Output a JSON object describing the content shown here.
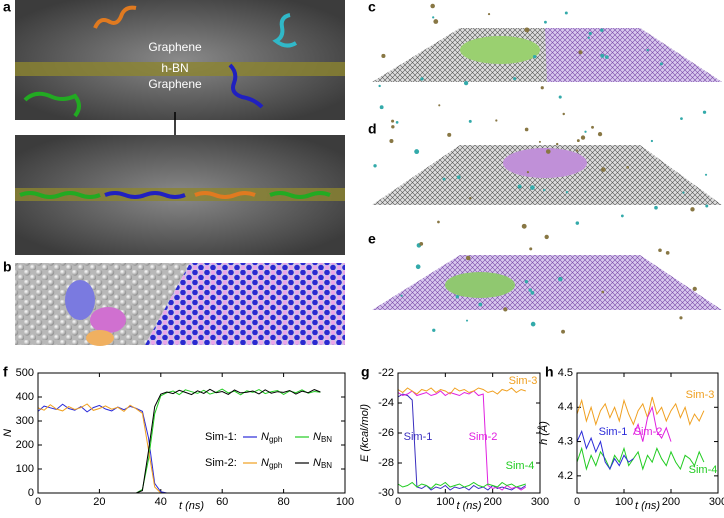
{
  "panels": {
    "a": "a",
    "b": "b",
    "c": "c",
    "d": "d",
    "e": "e"
  },
  "panel_a_texts": {
    "top": "Graphene",
    "middle": "h-BN",
    "bottom": "Graphene"
  },
  "chart_data": [
    {
      "type": "line",
      "panel_label": "f",
      "xlabel": "t (ns)",
      "ylabel": "N",
      "x": [
        0,
        2,
        4,
        6,
        8,
        10,
        12,
        14,
        16,
        18,
        20,
        22,
        24,
        26,
        28,
        30,
        32,
        34,
        36,
        38,
        40,
        42,
        44,
        46,
        48,
        50,
        52,
        54,
        56,
        58,
        60,
        62,
        64,
        66,
        68,
        70,
        72,
        74,
        76,
        78,
        80,
        82,
        84,
        86,
        88,
        90,
        92
      ],
      "xlim": [
        0,
        100
      ],
      "xticks": [
        0,
        20,
        40,
        60,
        80,
        100
      ],
      "ylim": [
        0,
        500
      ],
      "yticks": [
        0,
        100,
        200,
        300,
        400,
        500
      ],
      "legend_rows": [
        "Sim-1:",
        "Sim-2:"
      ],
      "series": [
        {
          "name": "Ngph",
          "color": "#2b2bd9",
          "values": [
            340,
            362,
            355,
            348,
            370,
            352,
            345,
            360,
            338,
            356,
            365,
            350,
            342,
            358,
            347,
            361,
            353,
            340,
            230,
            40,
            5,
            0,
            0,
            0,
            0,
            0,
            0,
            0,
            0,
            0,
            0,
            0,
            0,
            0,
            0,
            0,
            0,
            0,
            0,
            0,
            0,
            0,
            0,
            0,
            0,
            0,
            0
          ]
        },
        {
          "name": "NBN",
          "color": "#22cc22",
          "values": [
            0,
            0,
            0,
            0,
            0,
            0,
            0,
            0,
            0,
            0,
            0,
            0,
            0,
            0,
            0,
            0,
            0,
            15,
            140,
            330,
            405,
            418,
            425,
            410,
            430,
            422,
            415,
            428,
            412,
            420,
            433,
            417,
            424,
            409,
            426,
            419,
            431,
            414,
            422,
            427,
            411,
            425,
            418,
            430,
            416,
            423,
            420
          ]
        },
        {
          "name": "Ngph",
          "color": "#f0a020",
          "values": [
            355,
            345,
            368,
            350,
            342,
            360,
            348,
            356,
            371,
            344,
            352,
            363,
            349,
            357,
            340,
            366,
            351,
            332,
            180,
            25,
            0,
            0,
            0,
            0,
            0,
            0,
            0,
            0,
            0,
            0,
            0,
            0,
            0,
            0,
            0,
            0,
            0,
            0,
            0,
            0,
            0,
            0,
            0,
            0,
            0,
            0,
            0
          ]
        },
        {
          "name": "NBN",
          "color": "#000000",
          "values": [
            0,
            0,
            0,
            0,
            0,
            0,
            0,
            0,
            0,
            0,
            0,
            0,
            0,
            0,
            0,
            0,
            0,
            10,
            175,
            360,
            412,
            421,
            414,
            428,
            419,
            410,
            426,
            415,
            432,
            418,
            423,
            411,
            429,
            417,
            420,
            425,
            413,
            430,
            416,
            422,
            419,
            427,
            412,
            424,
            418,
            431,
            421
          ]
        }
      ]
    },
    {
      "type": "line",
      "panel_label": "g",
      "xlabel": "t (ns)",
      "ylabel": "E (kcal/mol)",
      "x": [
        0,
        10,
        20,
        30,
        40,
        50,
        60,
        70,
        80,
        90,
        100,
        110,
        120,
        130,
        140,
        150,
        160,
        170,
        180,
        190,
        200,
        210,
        220,
        230,
        240,
        250,
        260,
        270
      ],
      "xlim": [
        0,
        300
      ],
      "xticks": [
        0,
        100,
        200,
        300
      ],
      "ylim": [
        -30,
        -22
      ],
      "yticks": [
        -30,
        -28,
        -26,
        -24,
        -22
      ],
      "series": [
        {
          "name": "Sim-1",
          "color": "#3a2fbf",
          "values": [
            -23.6,
            -23.4,
            -23.5,
            -23.8,
            -29.6,
            -29.7,
            -29.5,
            -29.8,
            -29.6,
            -29.7,
            -29.5,
            -29.8,
            -29.6,
            -29.7,
            -29.6,
            -29.8,
            -29.5,
            -29.7,
            -29.6,
            -29.8,
            -29.5,
            -29.7,
            -29.6,
            -29.7,
            -29.8,
            -29.6,
            -29.7,
            -29.5
          ]
        },
        {
          "name": "Sim-2",
          "color": "#e020e0",
          "values": [
            -23.3,
            -23.5,
            -23.4,
            -23.2,
            -23.5,
            -23.4,
            -23.3,
            -23.5,
            -23.4,
            -23.2,
            -23.5,
            -23.3,
            -23.4,
            -23.5,
            -23.3,
            -23.4,
            -23.2,
            -23.5,
            -23.4,
            -29.5,
            -29.7,
            -29.6,
            -29.8,
            -29.5,
            -29.7,
            -29.6,
            -29.8,
            -29.6
          ]
        },
        {
          "name": "Sim-3",
          "color": "#f0a020",
          "values": [
            -23.1,
            -23.3,
            -23.0,
            -23.2,
            -23.4,
            -23.1,
            -23.2,
            -23.0,
            -23.3,
            -23.1,
            -23.2,
            -23.4,
            -23.0,
            -23.2,
            -23.1,
            -23.3,
            -23.2,
            -23.0,
            -23.1,
            -23.3,
            -23.2,
            -23.4,
            -23.1,
            -23.2,
            -23.0,
            -23.3,
            -23.1,
            -23.2
          ]
        },
        {
          "name": "Sim-4",
          "color": "#22cc22",
          "values": [
            -29.4,
            -29.6,
            -29.5,
            -29.3,
            -29.6,
            -29.4,
            -29.5,
            -29.7,
            -29.4,
            -29.5,
            -29.3,
            -29.6,
            -29.5,
            -29.4,
            -29.6,
            -29.5,
            -29.3,
            -29.5,
            -29.6,
            -29.4,
            -29.5,
            -29.6,
            -29.3,
            -29.5,
            -29.4,
            -29.6,
            -29.5,
            -29.4
          ]
        }
      ]
    },
    {
      "type": "line",
      "panel_label": "h",
      "xlabel": "t (ns)",
      "ylabel": "h (Å)",
      "x": [
        0,
        10,
        20,
        30,
        40,
        50,
        60,
        70,
        80,
        90,
        100,
        110,
        120,
        130,
        140,
        150,
        160,
        170,
        180,
        190,
        200,
        210,
        220,
        230,
        240,
        250,
        260,
        270
      ],
      "xlim": [
        0,
        300
      ],
      "xticks": [
        0,
        100,
        200,
        300
      ],
      "ylim": [
        4.15,
        4.5
      ],
      "yticks": [
        4.2,
        4.3,
        4.4,
        4.5
      ],
      "series": [
        {
          "name": "Sim-3",
          "color": "#f0a020",
          "values": [
            4.38,
            4.42,
            4.36,
            4.4,
            4.35,
            4.39,
            4.41,
            4.37,
            4.4,
            4.36,
            4.42,
            4.38,
            4.35,
            4.39,
            4.41,
            4.37,
            4.43,
            4.38,
            4.4,
            4.36,
            4.39,
            4.41,
            4.37,
            4.4,
            4.35,
            4.38,
            4.36,
            4.39
          ]
        },
        {
          "name": "Sim-4",
          "color": "#22cc22",
          "values": [
            4.24,
            4.28,
            4.22,
            4.26,
            4.23,
            4.27,
            4.25,
            4.22,
            4.26,
            4.24,
            4.28,
            4.23,
            4.25,
            4.27,
            4.22,
            4.26,
            4.24,
            4.28,
            4.25,
            4.23,
            4.27,
            4.24,
            4.22,
            4.26,
            4.25,
            4.23,
            4.27,
            4.24
          ]
        },
        {
          "name": "Sim-1",
          "color": "#2b2bd9",
          "values": [
            4.3,
            4.33,
            4.28,
            4.31,
            4.27,
            4.3,
            4.24,
            4.22,
            4.25,
            4.23,
            4.26,
            4.24,
            4.25,
            null,
            null,
            null,
            null,
            null,
            null,
            null,
            null,
            null,
            null,
            null,
            null,
            null,
            null,
            null
          ]
        },
        {
          "name": "Sim-2",
          "color": "#e020e0",
          "values": [
            null,
            null,
            null,
            null,
            null,
            null,
            null,
            null,
            null,
            null,
            null,
            null,
            4.32,
            4.35,
            4.3,
            4.37,
            4.4,
            4.33,
            4.31,
            4.34,
            4.3,
            null,
            null,
            null,
            null,
            null,
            null,
            null
          ]
        }
      ]
    }
  ]
}
